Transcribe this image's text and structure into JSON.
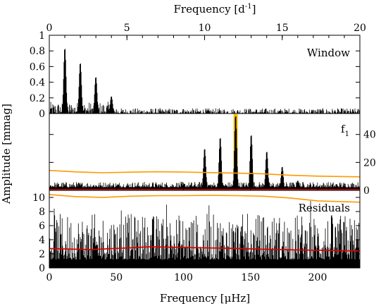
{
  "chart_data": {
    "type": "line",
    "top_axis": {
      "label": "Frequency [d",
      "label_sup": "-1",
      "label_close": "]",
      "range": [
        0,
        20
      ],
      "ticks": [
        "0",
        "5",
        "10",
        "15",
        "20"
      ]
    },
    "bottom_axis": {
      "label": "Frequency [μHz]",
      "range": [
        0,
        231.5
      ],
      "ticks": [
        "0",
        "50",
        "100",
        "150",
        "200"
      ]
    },
    "ylabel": "Amplitude [mmag]",
    "panels": [
      {
        "name": "Window",
        "ylim": [
          0,
          1.0
        ],
        "y_ticks": [
          "0",
          "0.2",
          "0.4",
          "0.6",
          "0.8",
          "1"
        ],
        "y_tick_side": "left",
        "peaks_uHz": [
          {
            "x": 11.6,
            "y": 0.84
          },
          {
            "x": 23.1,
            "y": 0.65
          },
          {
            "x": 34.7,
            "y": 0.47
          },
          {
            "x": 46.3,
            "y": 0.22
          }
        ],
        "noise_max": 0.15
      },
      {
        "name": "f",
        "subscript": "1",
        "ylim": [
          0,
          55
        ],
        "y_ticks": [
          "0",
          "20",
          "40"
        ],
        "y_tick_side": "right",
        "highlight": {
          "x_uHz": 138.9,
          "color": "#ffc000"
        },
        "peaks_uHz": [
          {
            "x": 115.8,
            "y": 30
          },
          {
            "x": 127.4,
            "y": 38
          },
          {
            "x": 138.9,
            "y": 54
          },
          {
            "x": 150.5,
            "y": 40
          },
          {
            "x": 162.1,
            "y": 28
          },
          {
            "x": 173.6,
            "y": 17
          },
          {
            "x": 185.2,
            "y": 7
          }
        ],
        "orange_lines": [
          {
            "x": [
              0,
              20,
              40,
              60,
              80,
              100,
              120,
              140,
              160,
              180,
              200,
              231.5
            ],
            "y": [
              14.3,
              13.2,
              12.6,
              13.0,
              13.3,
              13.1,
              12.7,
              12.3,
              11.8,
              10.8,
              10.2,
              9.7
            ]
          },
          {
            "x": [
              0,
              20,
              40,
              60,
              80,
              100,
              120,
              140,
              160,
              180,
              200,
              231.5
            ],
            "y": [
              -3.0,
              -4.5,
              -5.0,
              -4.2,
              -3.8,
              -3.8,
              -3.6,
              -3.8,
              -4.2,
              -5.5,
              -7.5,
              -8.5
            ]
          }
        ],
        "red_line": {
          "x": [
            0,
            231.5
          ],
          "y": [
            0.5,
            0.5
          ]
        }
      },
      {
        "name": "Residuals",
        "ylim": [
          0,
          11
        ],
        "y_ticks": [
          "0",
          "2",
          "4",
          "6",
          "8",
          "10"
        ],
        "y_tick_side": "left",
        "noise_max": 9.5,
        "red_line": {
          "x": [
            0,
            30,
            60,
            75,
            100,
            130,
            160,
            200,
            231.5
          ],
          "y": [
            2.75,
            2.6,
            2.85,
            3.0,
            2.9,
            2.8,
            2.65,
            2.5,
            2.4
          ]
        }
      }
    ],
    "colors": {
      "trace": "#000000",
      "highlight": "#ffc000",
      "orange": "#ff9900",
      "red": "#dd0000"
    }
  }
}
